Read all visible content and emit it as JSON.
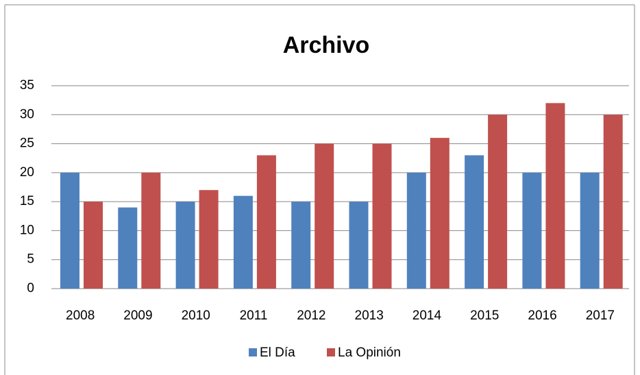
{
  "chart_data": {
    "type": "bar",
    "title": "Archivo",
    "categories": [
      "2008",
      "2009",
      "2010",
      "2011",
      "2012",
      "2013",
      "2014",
      "2015",
      "2016",
      "2017"
    ],
    "series": [
      {
        "name": "El Día",
        "color": "#4f81bd",
        "values": [
          20,
          14,
          15,
          16,
          15,
          15,
          20,
          23,
          20,
          20
        ]
      },
      {
        "name": "La Opinión",
        "color": "#c0504d",
        "values": [
          15,
          20,
          17,
          23,
          25,
          25,
          26,
          30,
          32,
          30
        ]
      }
    ],
    "ylim": [
      0,
      35
    ],
    "yticks": [
      0,
      5,
      10,
      15,
      20,
      25,
      30,
      35
    ],
    "grid": true,
    "legend": "bottom"
  }
}
